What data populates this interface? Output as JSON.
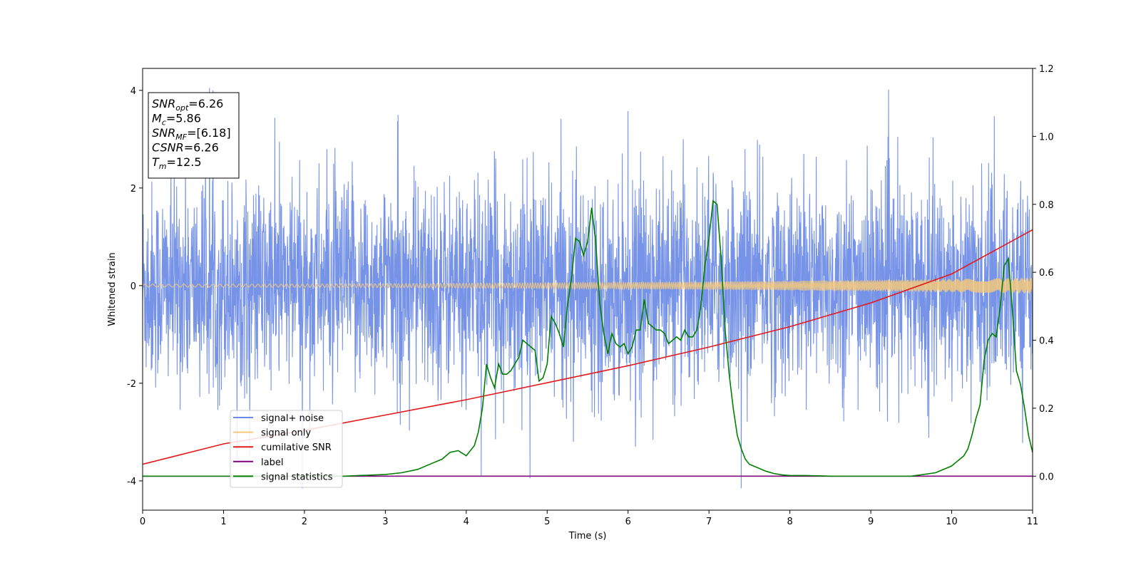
{
  "chart_data": {
    "type": "line",
    "xlabel": "Time (s)",
    "ylabel": "Whitened strain",
    "xlim": [
      0,
      11
    ],
    "ylim_left": [
      -4.6,
      4.45
    ],
    "ylim_right": [
      -0.1,
      1.2
    ],
    "x_ticks": [
      0,
      1,
      2,
      3,
      4,
      5,
      6,
      7,
      8,
      9,
      10,
      11
    ],
    "y_ticks_left": [
      -4,
      -2,
      0,
      2,
      4
    ],
    "y_ticks_right": [
      0.0,
      0.2,
      0.4,
      0.6,
      0.8,
      1.0,
      1.2
    ],
    "y_tick_labels_right": [
      "0.0",
      "0.2",
      "0.4",
      "0.6",
      "0.8",
      "1.0",
      "1.2"
    ],
    "legend_position": "lower-left",
    "annotation": {
      "lines": [
        {
          "var": "SNR",
          "sub": "opt",
          "value": "=6.26"
        },
        {
          "var": "M",
          "sub": "c",
          "value": "=5.86"
        },
        {
          "var": "SNR",
          "sub": "MF",
          "value": "=[6.18]"
        },
        {
          "var": "CSNR",
          "sub": "",
          "value": "=6.26"
        },
        {
          "var": "T",
          "sub": "m",
          "value": "=12.5"
        }
      ]
    },
    "series": [
      {
        "name": "signal+ noise",
        "color": "#6a8ae6",
        "axis": "left",
        "kind": "noise",
        "std": 1.05
      },
      {
        "name": "signal only",
        "color": "#f5c87a",
        "axis": "left",
        "kind": "chirp",
        "amp_start": 0.03,
        "amp_end": 0.16
      },
      {
        "name": "cumilative SNR",
        "color": "#e31a1c",
        "axis": "right",
        "kind": "line",
        "x": [
          0,
          1,
          2,
          3,
          4,
          5,
          6,
          7,
          8,
          9,
          10,
          11
        ],
        "y": [
          0.035,
          0.095,
          0.135,
          0.18,
          0.225,
          0.275,
          0.325,
          0.38,
          0.44,
          0.51,
          0.595,
          0.725
        ]
      },
      {
        "name": "label",
        "color": "#800080",
        "axis": "right",
        "kind": "line",
        "x": [
          0,
          11
        ],
        "y": [
          0.0,
          0.0
        ]
      },
      {
        "name": "signal statistics",
        "color": "#008000",
        "axis": "right",
        "kind": "line",
        "x": [
          0,
          0.5,
          1,
          1.5,
          2,
          2.5,
          3,
          3.2,
          3.4,
          3.6,
          3.7,
          3.8,
          3.9,
          4.0,
          4.1,
          4.15,
          4.2,
          4.25,
          4.3,
          4.35,
          4.4,
          4.45,
          4.5,
          4.55,
          4.6,
          4.65,
          4.7,
          4.75,
          4.8,
          4.85,
          4.9,
          4.95,
          5.0,
          5.05,
          5.1,
          5.15,
          5.2,
          5.25,
          5.3,
          5.35,
          5.4,
          5.45,
          5.5,
          5.55,
          5.6,
          5.65,
          5.7,
          5.75,
          5.8,
          5.85,
          5.9,
          5.95,
          6.0,
          6.05,
          6.1,
          6.15,
          6.2,
          6.25,
          6.3,
          6.35,
          6.4,
          6.45,
          6.5,
          6.55,
          6.6,
          6.65,
          6.7,
          6.75,
          6.8,
          6.85,
          6.9,
          6.95,
          7.0,
          7.05,
          7.1,
          7.15,
          7.2,
          7.25,
          7.3,
          7.35,
          7.4,
          7.45,
          7.5,
          7.55,
          7.6,
          7.7,
          7.8,
          7.9,
          8.0,
          8.2,
          8.5,
          9.0,
          9.5,
          9.8,
          9.9,
          10.0,
          10.05,
          10.1,
          10.15,
          10.2,
          10.25,
          10.3,
          10.35,
          10.4,
          10.45,
          10.5,
          10.55,
          10.6,
          10.65,
          10.7,
          10.75,
          10.8,
          10.85,
          10.9,
          10.95,
          11.0
        ],
        "y": [
          0.0,
          0.0,
          0.0,
          0.0,
          0.0,
          0.0,
          0.005,
          0.01,
          0.02,
          0.04,
          0.05,
          0.07,
          0.075,
          0.06,
          0.09,
          0.13,
          0.2,
          0.33,
          0.29,
          0.26,
          0.33,
          0.3,
          0.3,
          0.31,
          0.33,
          0.35,
          0.4,
          0.39,
          0.38,
          0.37,
          0.28,
          0.29,
          0.33,
          0.47,
          0.45,
          0.42,
          0.38,
          0.5,
          0.58,
          0.7,
          0.69,
          0.65,
          0.69,
          0.79,
          0.69,
          0.51,
          0.42,
          0.36,
          0.42,
          0.39,
          0.38,
          0.39,
          0.36,
          0.38,
          0.43,
          0.43,
          0.52,
          0.45,
          0.44,
          0.43,
          0.43,
          0.42,
          0.39,
          0.4,
          0.41,
          0.4,
          0.43,
          0.41,
          0.41,
          0.43,
          0.5,
          0.62,
          0.7,
          0.81,
          0.8,
          0.64,
          0.43,
          0.3,
          0.2,
          0.12,
          0.08,
          0.05,
          0.035,
          0.03,
          0.025,
          0.015,
          0.008,
          0.004,
          0.002,
          0.002,
          0.0,
          0.0,
          0.0,
          0.01,
          0.02,
          0.03,
          0.04,
          0.05,
          0.06,
          0.08,
          0.12,
          0.17,
          0.21,
          0.34,
          0.4,
          0.42,
          0.41,
          0.5,
          0.62,
          0.64,
          0.49,
          0.31,
          0.27,
          0.2,
          0.12,
          0.07
        ]
      }
    ]
  }
}
